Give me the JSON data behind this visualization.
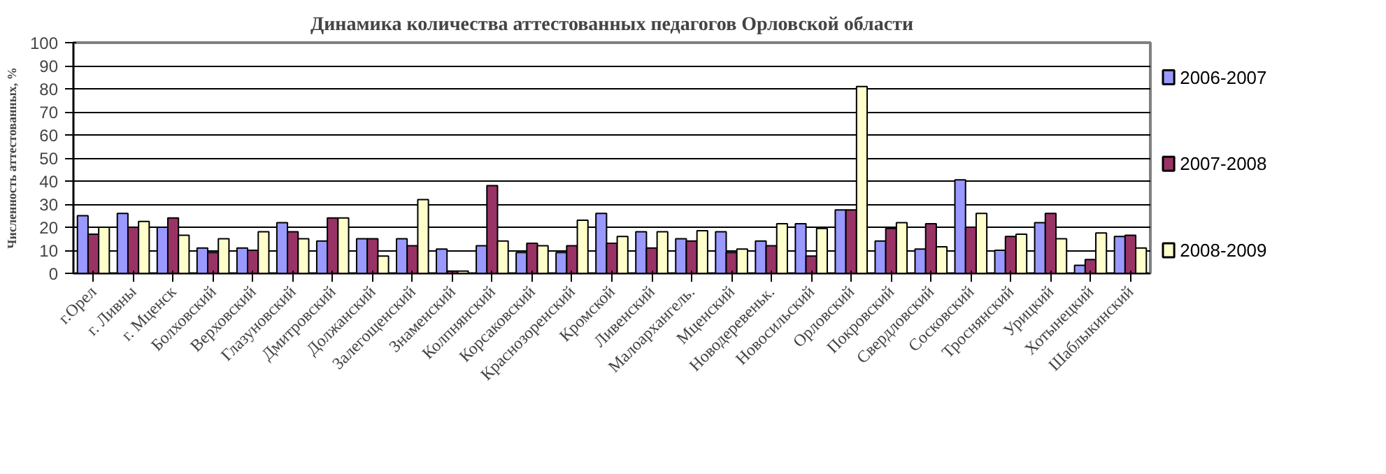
{
  "chart_data": {
    "type": "bar",
    "title": "Динамика количества аттестованных педагогов Орловской области",
    "ylabel": "Численность аттестованных, %",
    "categories": [
      "г.Орел",
      "г. Ливны",
      "г. Мценск",
      "Болховский",
      "Верховский",
      "Глазуновский",
      "Дмитровский",
      "Должанский",
      "Залегощенский",
      "Знаменский",
      "Колпнянский",
      "Корсаковский",
      "Краснозоренский",
      "Кромской",
      "Ливенский",
      "Малоархангель.",
      "Мценский",
      "Новодеревеньк.",
      "Новосильский",
      "Орловский",
      "Покровский",
      "Свердловский",
      "Сосковский",
      "Троснянский",
      "Урицкий",
      "Хотынецкий",
      "Шаблыкинский"
    ],
    "series": [
      {
        "name": "2006-2007",
        "color": "#9999ff",
        "values": [
          25,
          26,
          20,
          11,
          11,
          22,
          14,
          15,
          15,
          10.5,
          12,
          9,
          9,
          26,
          18,
          15,
          18,
          14,
          21.5,
          27.5,
          14,
          10.5,
          40.5,
          10,
          22,
          3.5,
          16
        ]
      },
      {
        "name": "2007-2008",
        "color": "#993366",
        "values": [
          17,
          20,
          24,
          9,
          10,
          18,
          24,
          15,
          12,
          1,
          38,
          13,
          12,
          13,
          11,
          14,
          9,
          12,
          7.5,
          27.5,
          19.5,
          21.5,
          20,
          16,
          26,
          6,
          16.5
        ]
      },
      {
        "name": "2008-2009",
        "color": "#ffffcc",
        "values": [
          20,
          22.5,
          16.5,
          15,
          18,
          15,
          24,
          7.5,
          32,
          1,
          14,
          12,
          23,
          16,
          18,
          18.5,
          10.5,
          21.5,
          19.5,
          81,
          22,
          11.5,
          26,
          17,
          15,
          17.5,
          11
        ]
      }
    ],
    "ylim": [
      0,
      100
    ],
    "yticks": [
      0,
      10,
      20,
      30,
      40,
      50,
      60,
      70,
      80,
      90,
      100
    ],
    "grid": "y",
    "legend": "right"
  }
}
